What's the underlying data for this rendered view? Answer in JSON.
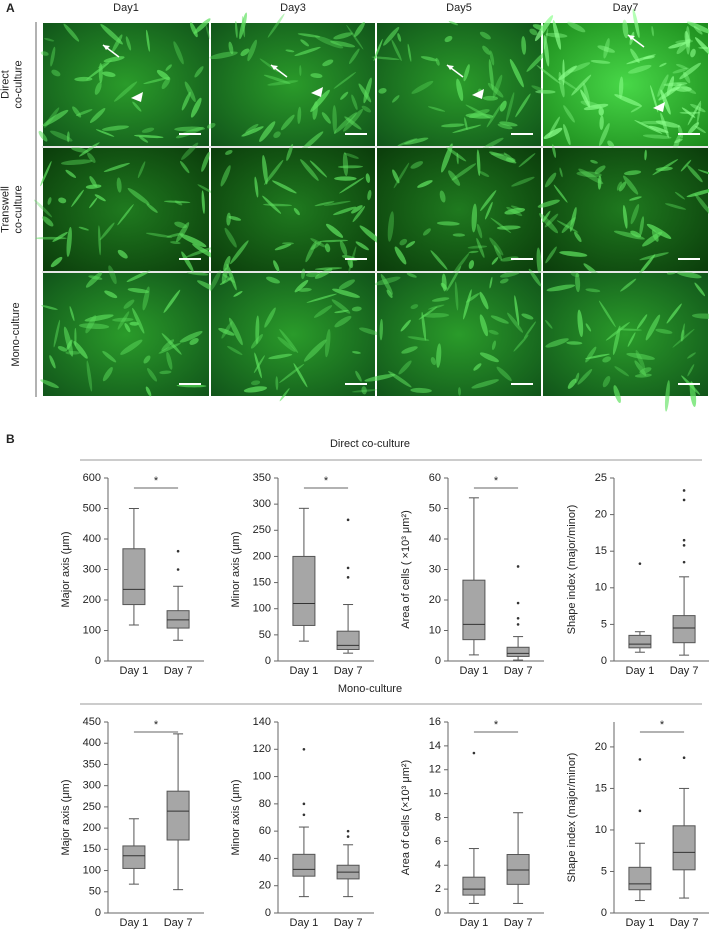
{
  "panel_a": {
    "label": "A",
    "columns": [
      "Day1",
      "Day3",
      "Day5",
      "Day7"
    ],
    "rows": [
      [
        "Direct",
        "co-culture"
      ],
      [
        "Transwell",
        "co-culture"
      ],
      [
        "Mono-culture"
      ]
    ]
  },
  "panel_b": {
    "label": "B",
    "group_titles": [
      "Direct co-culture",
      "Mono-culture"
    ]
  },
  "chart_data": [
    {
      "type": "box",
      "y_label": "Major axis (μm)",
      "categories": [
        "Day 1",
        "Day 7"
      ],
      "color": "#a6a6a6",
      "significance": "*",
      "ylim": [
        0,
        600
      ],
      "yticks": [
        0,
        100,
        200,
        300,
        400,
        500,
        600
      ],
      "boxes": [
        {
          "min": 118,
          "q1": 185,
          "median": 235,
          "q3": 368,
          "max": 500,
          "outliers": []
        },
        {
          "min": 68,
          "q1": 108,
          "median": 135,
          "q3": 165,
          "max": 245,
          "outliers": [
            300,
            360
          ]
        }
      ]
    },
    {
      "type": "box",
      "y_label": "Minor axis (μm)",
      "categories": [
        "Day 1",
        "Day 7"
      ],
      "color": "#a6a6a6",
      "significance": "*",
      "ylim": [
        0,
        350
      ],
      "yticks": [
        0,
        50,
        100,
        150,
        200,
        250,
        300,
        350
      ],
      "boxes": [
        {
          "min": 38,
          "q1": 68,
          "median": 110,
          "q3": 200,
          "max": 292,
          "outliers": []
        },
        {
          "min": 15,
          "q1": 22,
          "median": 30,
          "q3": 57,
          "max": 108,
          "outliers": [
            160,
            178,
            270
          ]
        }
      ]
    },
    {
      "type": "box",
      "y_label": "Area of cells ( ×10³ μm²)",
      "categories": [
        "Day 1",
        "Day 7"
      ],
      "color": "#a6a6a6",
      "significance": "*",
      "ylim": [
        0,
        60
      ],
      "yticks": [
        0,
        10,
        20,
        30,
        40,
        50,
        60
      ],
      "boxes": [
        {
          "min": 2,
          "q1": 7,
          "median": 12,
          "q3": 26.5,
          "max": 53.5,
          "outliers": []
        },
        {
          "min": 0.3,
          "q1": 1.5,
          "median": 2.5,
          "q3": 4.5,
          "max": 8,
          "outliers": [
            12,
            14,
            19,
            31
          ]
        }
      ]
    },
    {
      "type": "box",
      "y_label": "Shape index (major/minor)",
      "categories": [
        "Day 1",
        "Day 7"
      ],
      "color": "#a6a6a6",
      "ylim": [
        0,
        25
      ],
      "yticks": [
        0,
        5,
        10,
        15,
        20,
        25
      ],
      "boxes": [
        {
          "min": 1.2,
          "q1": 1.8,
          "median": 2.3,
          "q3": 3.5,
          "max": 4,
          "outliers": [
            13.3
          ]
        },
        {
          "min": 0.8,
          "q1": 2.5,
          "median": 4.5,
          "q3": 6.2,
          "max": 11.5,
          "outliers": [
            13.5,
            15.8,
            16.5,
            22,
            23.3
          ]
        }
      ]
    },
    {
      "type": "box",
      "y_label": "Major axis (μm)",
      "categories": [
        "Day 1",
        "Day 7"
      ],
      "color": "#a6a6a6",
      "significance": "*",
      "ylim": [
        0,
        450
      ],
      "yticks": [
        0,
        50,
        100,
        150,
        200,
        250,
        300,
        350,
        400,
        450
      ],
      "boxes": [
        {
          "min": 68,
          "q1": 105,
          "median": 135,
          "q3": 158,
          "max": 222,
          "outliers": []
        },
        {
          "min": 55,
          "q1": 172,
          "median": 240,
          "q3": 287,
          "max": 422,
          "outliers": []
        }
      ]
    },
    {
      "type": "box",
      "y_label": "Minor axis (μm)",
      "categories": [
        "Day 1",
        "Day 7"
      ],
      "color": "#a6a6a6",
      "ylim": [
        0,
        140
      ],
      "yticks": [
        0,
        20,
        40,
        60,
        80,
        100,
        120,
        140
      ],
      "boxes": [
        {
          "min": 12,
          "q1": 27,
          "median": 32,
          "q3": 43,
          "max": 63,
          "outliers": [
            72,
            80,
            120
          ]
        },
        {
          "min": 12,
          "q1": 25,
          "median": 30,
          "q3": 35,
          "max": 50,
          "outliers": [
            56,
            60
          ]
        }
      ]
    },
    {
      "type": "box",
      "y_label": "Area of cells (×10³ μm²)",
      "categories": [
        "Day 1",
        "Day 7"
      ],
      "color": "#a6a6a6",
      "significance": "*",
      "ylim": [
        0,
        16
      ],
      "yticks": [
        0,
        2,
        4,
        6,
        8,
        10,
        12,
        14,
        16
      ],
      "boxes": [
        {
          "min": 0.8,
          "q1": 1.5,
          "median": 2,
          "q3": 3,
          "max": 5.4,
          "outliers": [
            13.4
          ]
        },
        {
          "min": 0.8,
          "q1": 2.4,
          "median": 3.6,
          "q3": 4.9,
          "max": 8.4,
          "outliers": []
        }
      ]
    },
    {
      "type": "box",
      "y_label": "Shape index (major/minor)",
      "categories": [
        "Day 1",
        "Day 7"
      ],
      "color": "#a6a6a6",
      "significance": "*",
      "ylim": [
        0,
        23
      ],
      "yticks": [
        0,
        5,
        10,
        15,
        20
      ],
      "boxes": [
        {
          "min": 1.5,
          "q1": 2.8,
          "median": 3.5,
          "q3": 5.5,
          "max": 8.4,
          "outliers": [
            12.3,
            18.5
          ]
        },
        {
          "min": 1.8,
          "q1": 5.2,
          "median": 7.3,
          "q3": 10.5,
          "max": 15,
          "outliers": [
            18.7
          ]
        }
      ]
    }
  ]
}
